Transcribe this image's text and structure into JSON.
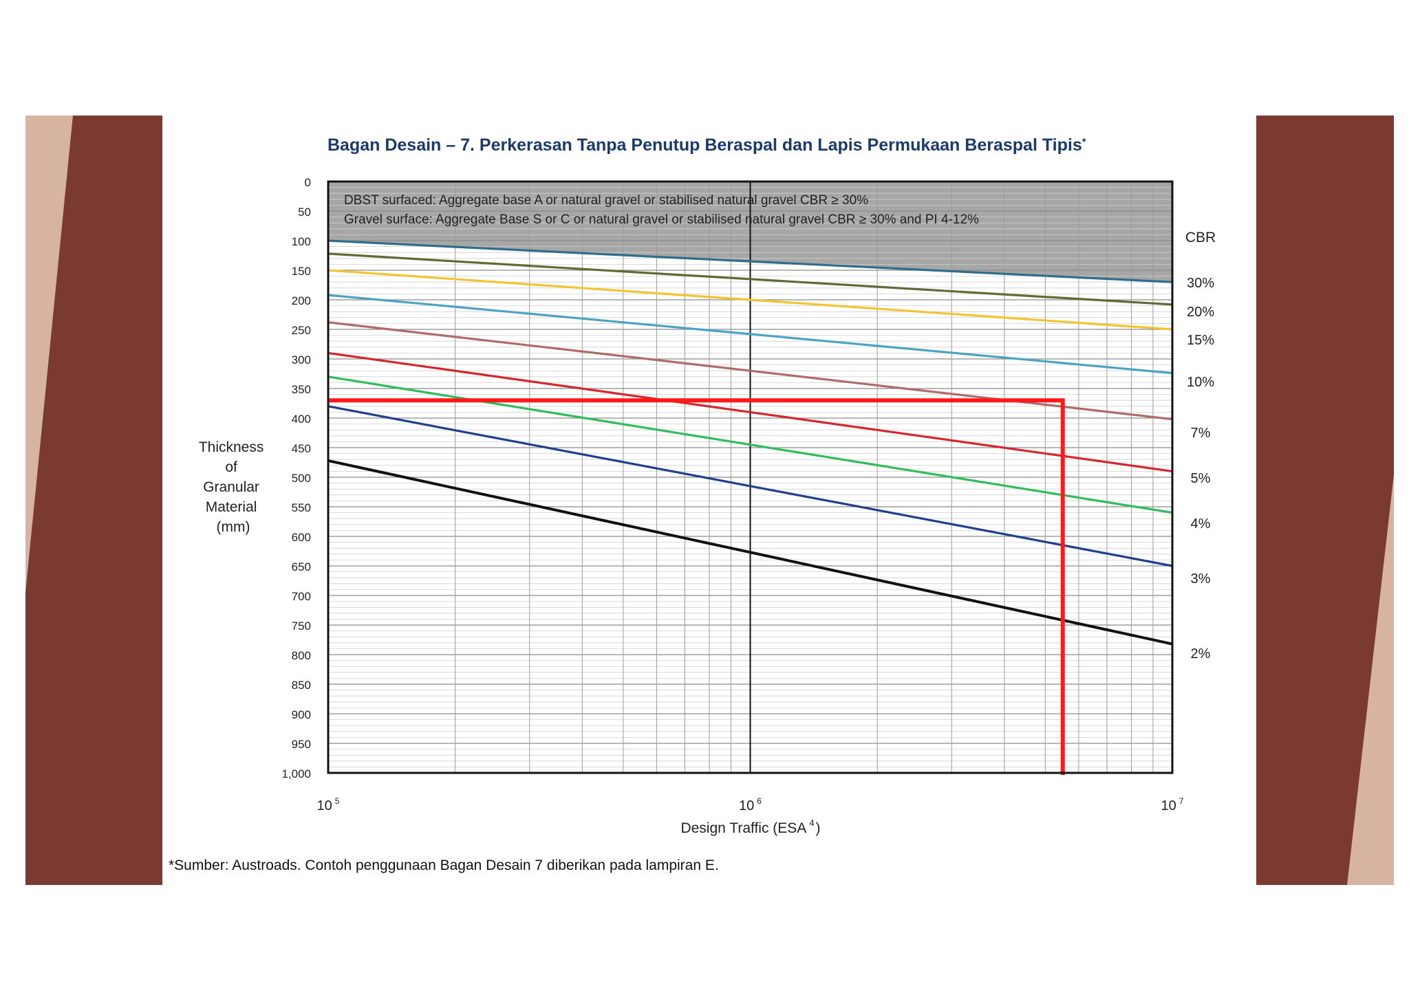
{
  "slide": {
    "colors": {
      "brown": "#7b3a31",
      "tan": "#d7b3a2",
      "background": "#ffffff"
    }
  },
  "chart_data": {
    "type": "line",
    "title": "Bagan Desain – 7. Perkerasan Tanpa Penutup Beraspal dan Lapis Permukaan Beraspal Tipis",
    "title_mark": "*",
    "xlabel_main": "Design Traffic (ESA",
    "xlabel_sup": "4",
    "xlabel_end": ")",
    "ylabel": [
      "Thickness",
      "of",
      "Granular",
      "Material",
      "(mm)"
    ],
    "x_scale": "log",
    "xlim": [
      100000,
      10000000
    ],
    "ylim": [
      0,
      1000
    ],
    "y_inverted": true,
    "x_tick_labels": [
      {
        "base": "10",
        "exp": "5",
        "value": 100000
      },
      {
        "base": "10",
        "exp": "6",
        "value": 1000000
      },
      {
        "base": "10",
        "exp": "7",
        "value": 10000000
      }
    ],
    "y_ticks": [
      0,
      50,
      100,
      150,
      200,
      250,
      300,
      350,
      400,
      450,
      500,
      550,
      600,
      650,
      700,
      750,
      800,
      850,
      900,
      950,
      1000
    ],
    "y_tick_labels": [
      "0",
      "50",
      "100",
      "150",
      "200",
      "250",
      "300",
      "350",
      "400",
      "450",
      "500",
      "550",
      "600",
      "650",
      "700",
      "750",
      "800",
      "850",
      "900",
      "950",
      "1,000"
    ],
    "legend_title": "CBR",
    "shaded_region": {
      "lines": [
        "DBST surfaced: Aggregate base A or natural gravel or stabilised natural gravel CBR ≥ 30%",
        "Gravel surface: Aggregate Base S or C or natural gravel or stabilised natural gravel CBR ≥ 30%  and PI 4-12%"
      ],
      "color": "#a7a7a7"
    },
    "series": [
      {
        "name": "30%",
        "color": "#2f6e8a",
        "values": [
          100,
          135,
          170
        ]
      },
      {
        "name": "20%",
        "color": "#5f6b35",
        "values": [
          122,
          165,
          208
        ]
      },
      {
        "name": "15%",
        "color": "#f4c430",
        "values": [
          150,
          200,
          250
        ]
      },
      {
        "name": "10%",
        "color": "#4ba3c3",
        "values": [
          192,
          258,
          324
        ]
      },
      {
        "name": "7%",
        "color": "#b06a6a",
        "values": [
          238,
          320,
          402
        ]
      },
      {
        "name": "5%",
        "color": "#d4262c",
        "values": [
          290,
          390,
          490
        ]
      },
      {
        "name": "4%",
        "color": "#2ebd5a",
        "values": [
          330,
          445,
          560
        ]
      },
      {
        "name": "3%",
        "color": "#1f3f8f",
        "values": [
          380,
          515,
          650
        ]
      },
      {
        "name": "2%",
        "color": "#111111",
        "values": [
          472,
          627,
          782
        ]
      }
    ],
    "series_x": [
      100000,
      1000000,
      10000000
    ],
    "annotation": {
      "color": "#ff1a1a",
      "y_value": 370,
      "x_value": 5500000
    },
    "footnote": "*Sumber: Austroads. Contoh penggunaan Bagan Desain 7 diberikan pada lampiran E."
  }
}
